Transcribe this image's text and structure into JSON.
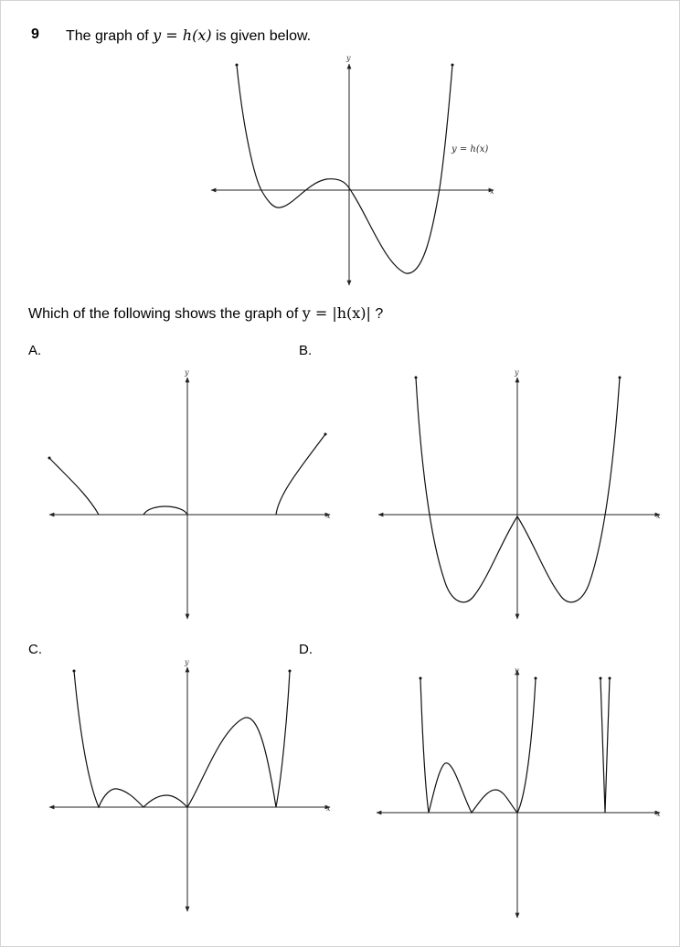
{
  "question": {
    "number": "9",
    "stem_before": "The graph of ",
    "stem_math": "y = h(x)",
    "stem_after": " is given below.",
    "prompt_before": "Which of the following shows the graph of ",
    "prompt_math": "y = |h(x)|",
    "prompt_after": " ?"
  },
  "main_graph": {
    "x_label": "x",
    "y_label": "y",
    "curve_label": "y = h(x)"
  },
  "options": [
    {
      "label": "A.",
      "x_label": "x",
      "y_label": "y"
    },
    {
      "label": "B.",
      "x_label": "x",
      "y_label": "y"
    },
    {
      "label": "C.",
      "x_label": "x",
      "y_label": "y"
    },
    {
      "label": "D.",
      "x_label": "x",
      "y_label": "y"
    }
  ],
  "colors": {
    "ink": "#111111",
    "frame": "#d4d4d4",
    "background": "#ffffff"
  }
}
